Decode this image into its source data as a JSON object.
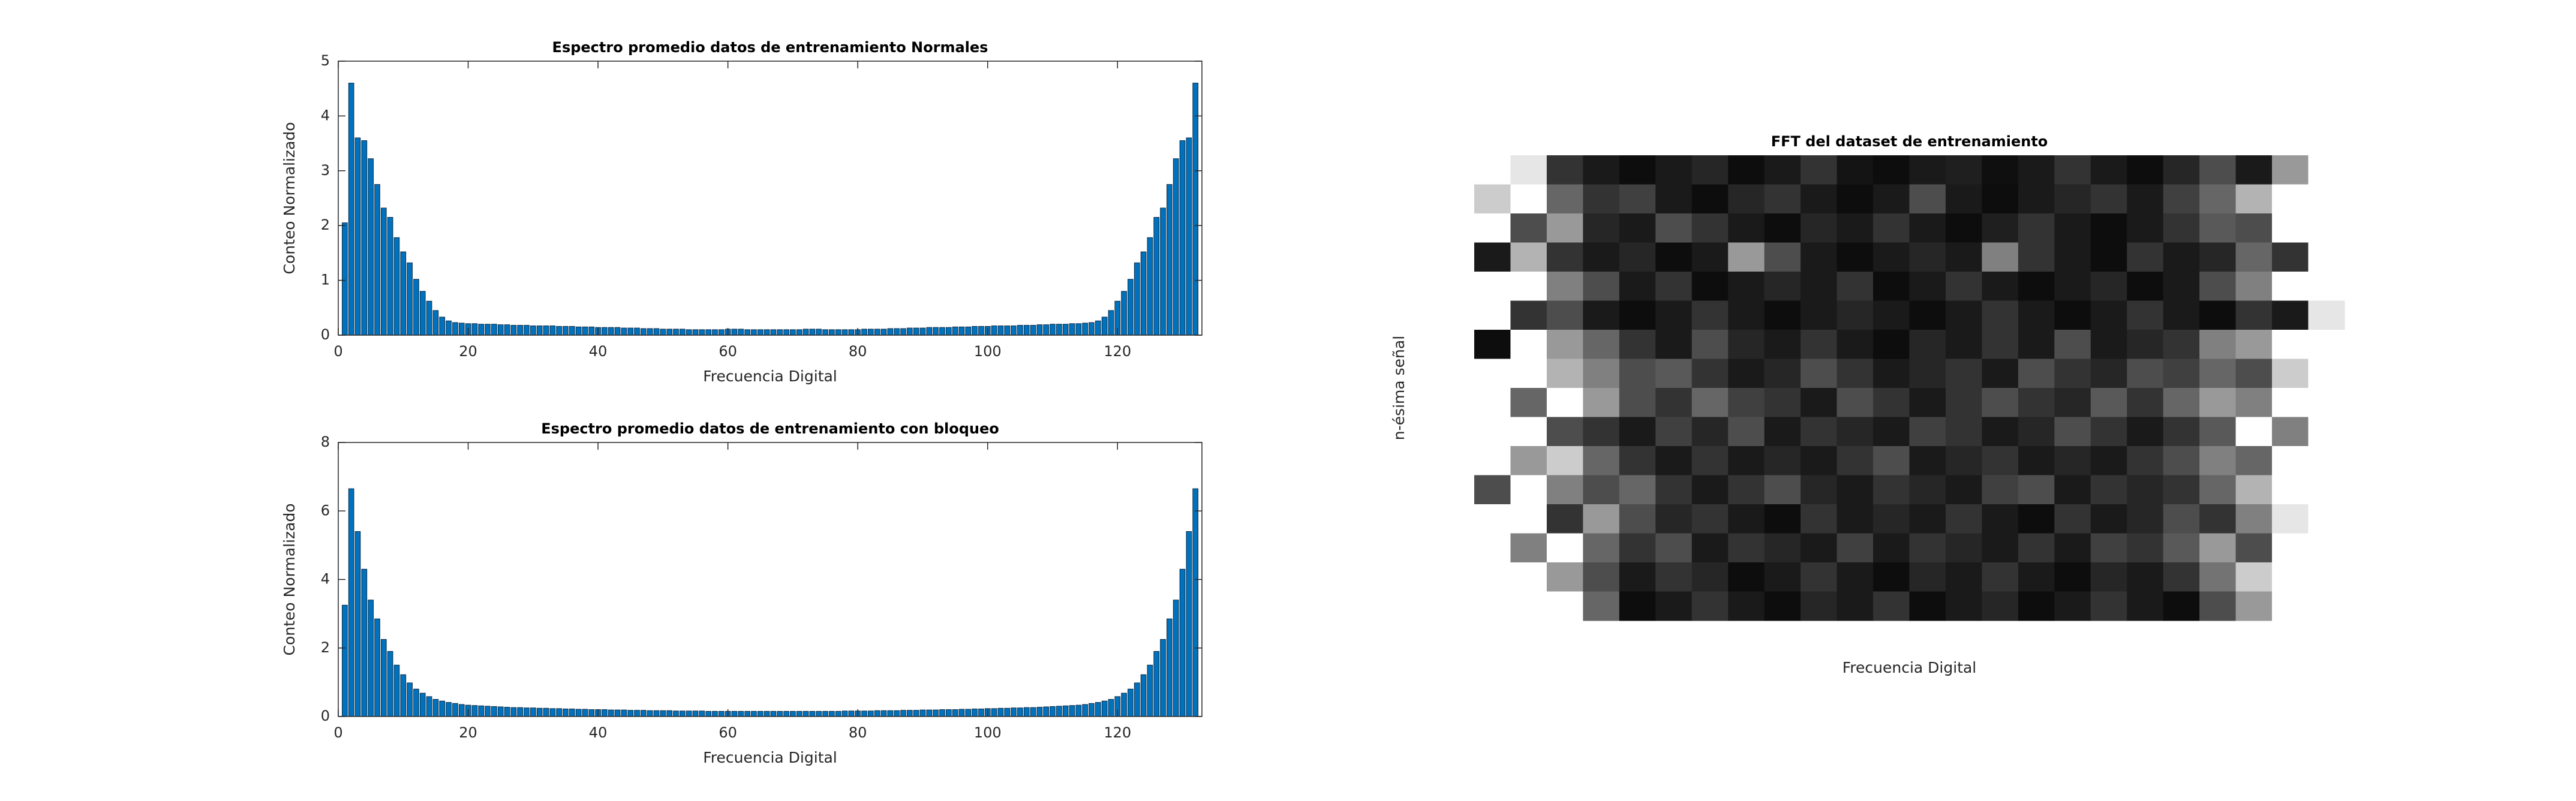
{
  "chart_data": [
    {
      "type": "bar",
      "title": "Espectro promedio datos de entrenamiento Normales",
      "xlabel": "Frecuencia Digital",
      "ylabel": "Conteo Normalizado",
      "color": "#0072bd",
      "x": [
        1,
        2,
        3,
        4,
        5,
        6,
        7,
        8,
        9,
        10,
        11,
        12,
        13,
        14,
        15,
        16,
        17,
        18,
        19,
        20,
        21,
        22,
        23,
        24,
        25,
        26,
        27,
        28,
        29,
        30,
        31,
        32,
        33,
        34,
        35,
        36,
        37,
        38,
        39,
        40,
        41,
        42,
        43,
        44,
        45,
        46,
        47,
        48,
        49,
        50,
        51,
        52,
        53,
        54,
        55,
        56,
        57,
        58,
        59,
        60,
        61,
        62,
        63,
        64,
        65,
        66,
        67,
        68,
        69,
        70,
        71,
        72,
        73,
        74,
        75,
        76,
        77,
        78,
        79,
        80,
        81,
        82,
        83,
        84,
        85,
        86,
        87,
        88,
        89,
        90,
        91,
        92,
        93,
        94,
        95,
        96,
        97,
        98,
        99,
        100,
        101,
        102,
        103,
        104,
        105,
        106,
        107,
        108,
        109,
        110,
        111,
        112,
        113,
        114,
        115,
        116,
        117,
        118,
        119,
        120,
        121,
        122,
        123,
        124,
        125,
        126,
        127,
        128,
        129,
        130,
        131,
        132
      ],
      "values": [
        2.05,
        4.6,
        3.6,
        3.55,
        3.22,
        2.75,
        2.32,
        2.15,
        1.78,
        1.52,
        1.32,
        1.02,
        0.8,
        0.62,
        0.45,
        0.33,
        0.26,
        0.23,
        0.22,
        0.21,
        0.21,
        0.2,
        0.2,
        0.2,
        0.19,
        0.19,
        0.18,
        0.18,
        0.18,
        0.17,
        0.17,
        0.17,
        0.17,
        0.16,
        0.16,
        0.16,
        0.15,
        0.15,
        0.15,
        0.14,
        0.14,
        0.14,
        0.14,
        0.13,
        0.13,
        0.13,
        0.12,
        0.12,
        0.12,
        0.11,
        0.11,
        0.11,
        0.11,
        0.1,
        0.1,
        0.1,
        0.1,
        0.1,
        0.1,
        0.11,
        0.11,
        0.11,
        0.1,
        0.1,
        0.1,
        0.1,
        0.1,
        0.1,
        0.1,
        0.1,
        0.1,
        0.11,
        0.11,
        0.11,
        0.1,
        0.1,
        0.1,
        0.1,
        0.1,
        0.1,
        0.11,
        0.11,
        0.11,
        0.11,
        0.12,
        0.12,
        0.12,
        0.13,
        0.13,
        0.13,
        0.14,
        0.14,
        0.14,
        0.14,
        0.15,
        0.15,
        0.15,
        0.16,
        0.16,
        0.16,
        0.17,
        0.17,
        0.17,
        0.17,
        0.18,
        0.18,
        0.18,
        0.19,
        0.19,
        0.2,
        0.2,
        0.2,
        0.21,
        0.21,
        0.22,
        0.23,
        0.26,
        0.33,
        0.45,
        0.62,
        0.8,
        1.02,
        1.32,
        1.52,
        1.78,
        2.15,
        2.32,
        2.75,
        3.22,
        3.55,
        3.6,
        4.6
      ],
      "xlim": [
        0,
        133
      ],
      "xticks": [
        0,
        20,
        40,
        60,
        80,
        100,
        120
      ],
      "ylim": [
        0,
        5
      ],
      "yticks": [
        0,
        1,
        2,
        3,
        4,
        5
      ]
    },
    {
      "type": "bar",
      "title": "Espectro promedio datos de entrenamiento con bloqueo",
      "xlabel": "Frecuencia Digital",
      "ylabel": "Conteo Normalizado",
      "color": "#0072bd",
      "x": [
        1,
        2,
        3,
        4,
        5,
        6,
        7,
        8,
        9,
        10,
        11,
        12,
        13,
        14,
        15,
        16,
        17,
        18,
        19,
        20,
        21,
        22,
        23,
        24,
        25,
        26,
        27,
        28,
        29,
        30,
        31,
        32,
        33,
        34,
        35,
        36,
        37,
        38,
        39,
        40,
        41,
        42,
        43,
        44,
        45,
        46,
        47,
        48,
        49,
        50,
        51,
        52,
        53,
        54,
        55,
        56,
        57,
        58,
        59,
        60,
        61,
        62,
        63,
        64,
        65,
        66,
        67,
        68,
        69,
        70,
        71,
        72,
        73,
        74,
        75,
        76,
        77,
        78,
        79,
        80,
        81,
        82,
        83,
        84,
        85,
        86,
        87,
        88,
        89,
        90,
        91,
        92,
        93,
        94,
        95,
        96,
        97,
        98,
        99,
        100,
        101,
        102,
        103,
        104,
        105,
        106,
        107,
        108,
        109,
        110,
        111,
        112,
        113,
        114,
        115,
        116,
        117,
        118,
        119,
        120,
        121,
        122,
        123,
        124,
        125,
        126,
        127,
        128,
        129,
        130,
        131,
        132
      ],
      "values": [
        3.25,
        6.65,
        5.4,
        4.3,
        3.4,
        2.85,
        2.25,
        1.9,
        1.5,
        1.22,
        0.98,
        0.8,
        0.68,
        0.58,
        0.5,
        0.45,
        0.41,
        0.38,
        0.35,
        0.33,
        0.32,
        0.31,
        0.3,
        0.29,
        0.28,
        0.27,
        0.26,
        0.26,
        0.25,
        0.25,
        0.24,
        0.24,
        0.23,
        0.23,
        0.22,
        0.22,
        0.21,
        0.21,
        0.2,
        0.2,
        0.2,
        0.19,
        0.19,
        0.19,
        0.18,
        0.18,
        0.18,
        0.17,
        0.17,
        0.17,
        0.17,
        0.16,
        0.16,
        0.16,
        0.16,
        0.16,
        0.15,
        0.15,
        0.15,
        0.15,
        0.15,
        0.15,
        0.15,
        0.15,
        0.15,
        0.15,
        0.15,
        0.15,
        0.15,
        0.15,
        0.15,
        0.15,
        0.15,
        0.15,
        0.15,
        0.15,
        0.15,
        0.16,
        0.16,
        0.16,
        0.16,
        0.16,
        0.17,
        0.17,
        0.17,
        0.17,
        0.18,
        0.18,
        0.18,
        0.19,
        0.19,
        0.19,
        0.2,
        0.2,
        0.2,
        0.21,
        0.21,
        0.22,
        0.22,
        0.23,
        0.23,
        0.24,
        0.24,
        0.25,
        0.25,
        0.26,
        0.26,
        0.27,
        0.28,
        0.29,
        0.3,
        0.31,
        0.32,
        0.33,
        0.35,
        0.38,
        0.41,
        0.45,
        0.5,
        0.58,
        0.68,
        0.8,
        0.98,
        1.22,
        1.5,
        1.9,
        2.25,
        2.85,
        3.4,
        4.3,
        5.4,
        6.65
      ],
      "xlim": [
        0,
        133
      ],
      "xticks": [
        0,
        20,
        40,
        60,
        80,
        100,
        120
      ],
      "ylim": [
        0,
        8
      ],
      "yticks": [
        0,
        2,
        4,
        6,
        8
      ]
    },
    {
      "type": "heatmap",
      "title": "FFT del dataset de entrenamiento",
      "xlabel": "Frecuencia Digital",
      "ylabel": "n-ésima señal",
      "colormap": "gray",
      "z": [
        [
          1,
          0.9,
          0.2,
          0.1,
          0.05,
          0.1,
          0.15,
          0.05,
          0.1,
          0.2,
          0.08,
          0.05,
          0.1,
          0.12,
          0.06,
          0.1,
          0.2,
          0.1,
          0.05,
          0.15,
          0.3,
          0.1,
          0.6,
          1
        ],
        [
          0.8,
          1,
          0.4,
          0.2,
          0.25,
          0.1,
          0.05,
          0.15,
          0.2,
          0.1,
          0.05,
          0.1,
          0.3,
          0.1,
          0.05,
          0.1,
          0.15,
          0.2,
          0.1,
          0.25,
          0.4,
          0.7,
          1,
          1
        ],
        [
          1,
          0.3,
          0.6,
          0.15,
          0.1,
          0.3,
          0.2,
          0.1,
          0.05,
          0.15,
          0.1,
          0.2,
          0.1,
          0.05,
          0.12,
          0.2,
          0.1,
          0.05,
          0.1,
          0.2,
          0.35,
          0.3,
          1,
          1
        ],
        [
          0.1,
          0.7,
          0.2,
          0.1,
          0.15,
          0.05,
          0.1,
          0.6,
          0.3,
          0.1,
          0.05,
          0.1,
          0.15,
          0.1,
          0.5,
          0.2,
          0.1,
          0.05,
          0.2,
          0.1,
          0.15,
          0.4,
          0.2,
          1
        ],
        [
          1,
          1,
          0.5,
          0.3,
          0.1,
          0.2,
          0.05,
          0.1,
          0.15,
          0.1,
          0.2,
          0.05,
          0.1,
          0.2,
          0.1,
          0.05,
          0.1,
          0.15,
          0.05,
          0.1,
          0.3,
          0.5,
          1,
          1
        ],
        [
          1,
          0.2,
          0.3,
          0.1,
          0.05,
          0.1,
          0.2,
          0.1,
          0.05,
          0.1,
          0.15,
          0.1,
          0.05,
          0.1,
          0.2,
          0.1,
          0.05,
          0.1,
          0.2,
          0.1,
          0.05,
          0.2,
          0.1,
          0.9
        ],
        [
          0.05,
          1,
          0.6,
          0.4,
          0.2,
          0.1,
          0.3,
          0.15,
          0.1,
          0.2,
          0.1,
          0.05,
          0.15,
          0.1,
          0.2,
          0.1,
          0.3,
          0.1,
          0.15,
          0.2,
          0.5,
          0.6,
          1,
          1
        ],
        [
          1,
          1,
          0.7,
          0.5,
          0.3,
          0.35,
          0.2,
          0.1,
          0.15,
          0.3,
          0.2,
          0.1,
          0.15,
          0.2,
          0.1,
          0.3,
          0.2,
          0.15,
          0.3,
          0.25,
          0.4,
          0.3,
          0.8,
          1
        ],
        [
          1,
          0.4,
          1,
          0.6,
          0.3,
          0.2,
          0.4,
          0.25,
          0.2,
          0.1,
          0.3,
          0.2,
          0.1,
          0.2,
          0.3,
          0.2,
          0.15,
          0.35,
          0.2,
          0.4,
          0.6,
          0.5,
          1,
          1
        ],
        [
          1,
          1,
          0.3,
          0.2,
          0.1,
          0.25,
          0.15,
          0.3,
          0.1,
          0.2,
          0.15,
          0.1,
          0.25,
          0.2,
          0.1,
          0.15,
          0.3,
          0.2,
          0.1,
          0.2,
          0.35,
          1,
          0.5,
          1
        ],
        [
          1,
          0.6,
          0.8,
          0.4,
          0.2,
          0.1,
          0.2,
          0.1,
          0.15,
          0.1,
          0.2,
          0.3,
          0.1,
          0.15,
          0.2,
          0.1,
          0.15,
          0.1,
          0.2,
          0.3,
          0.5,
          0.4,
          1,
          1
        ],
        [
          0.3,
          1,
          0.5,
          0.3,
          0.4,
          0.2,
          0.1,
          0.2,
          0.3,
          0.15,
          0.1,
          0.2,
          0.15,
          0.1,
          0.25,
          0.3,
          0.1,
          0.2,
          0.15,
          0.2,
          0.4,
          0.7,
          1,
          1
        ],
        [
          1,
          1,
          0.2,
          0.6,
          0.3,
          0.15,
          0.2,
          0.1,
          0.05,
          0.2,
          0.1,
          0.15,
          0.1,
          0.2,
          0.1,
          0.05,
          0.2,
          0.1,
          0.15,
          0.3,
          0.2,
          0.5,
          0.9,
          1
        ],
        [
          1,
          0.5,
          1,
          0.4,
          0.2,
          0.3,
          0.1,
          0.2,
          0.15,
          0.1,
          0.25,
          0.1,
          0.2,
          0.15,
          0.1,
          0.2,
          0.1,
          0.25,
          0.2,
          0.35,
          0.6,
          0.3,
          1,
          1
        ],
        [
          1,
          1,
          0.6,
          0.3,
          0.1,
          0.2,
          0.15,
          0.05,
          0.1,
          0.2,
          0.1,
          0.05,
          0.15,
          0.1,
          0.2,
          0.1,
          0.05,
          0.15,
          0.1,
          0.2,
          0.45,
          0.8,
          1,
          1
        ],
        [
          1,
          1,
          1,
          0.4,
          0.05,
          0.1,
          0.2,
          0.1,
          0.05,
          0.15,
          0.1,
          0.2,
          0.05,
          0.1,
          0.15,
          0.05,
          0.1,
          0.2,
          0.1,
          0.05,
          0.3,
          0.6,
          1,
          1
        ]
      ]
    }
  ]
}
